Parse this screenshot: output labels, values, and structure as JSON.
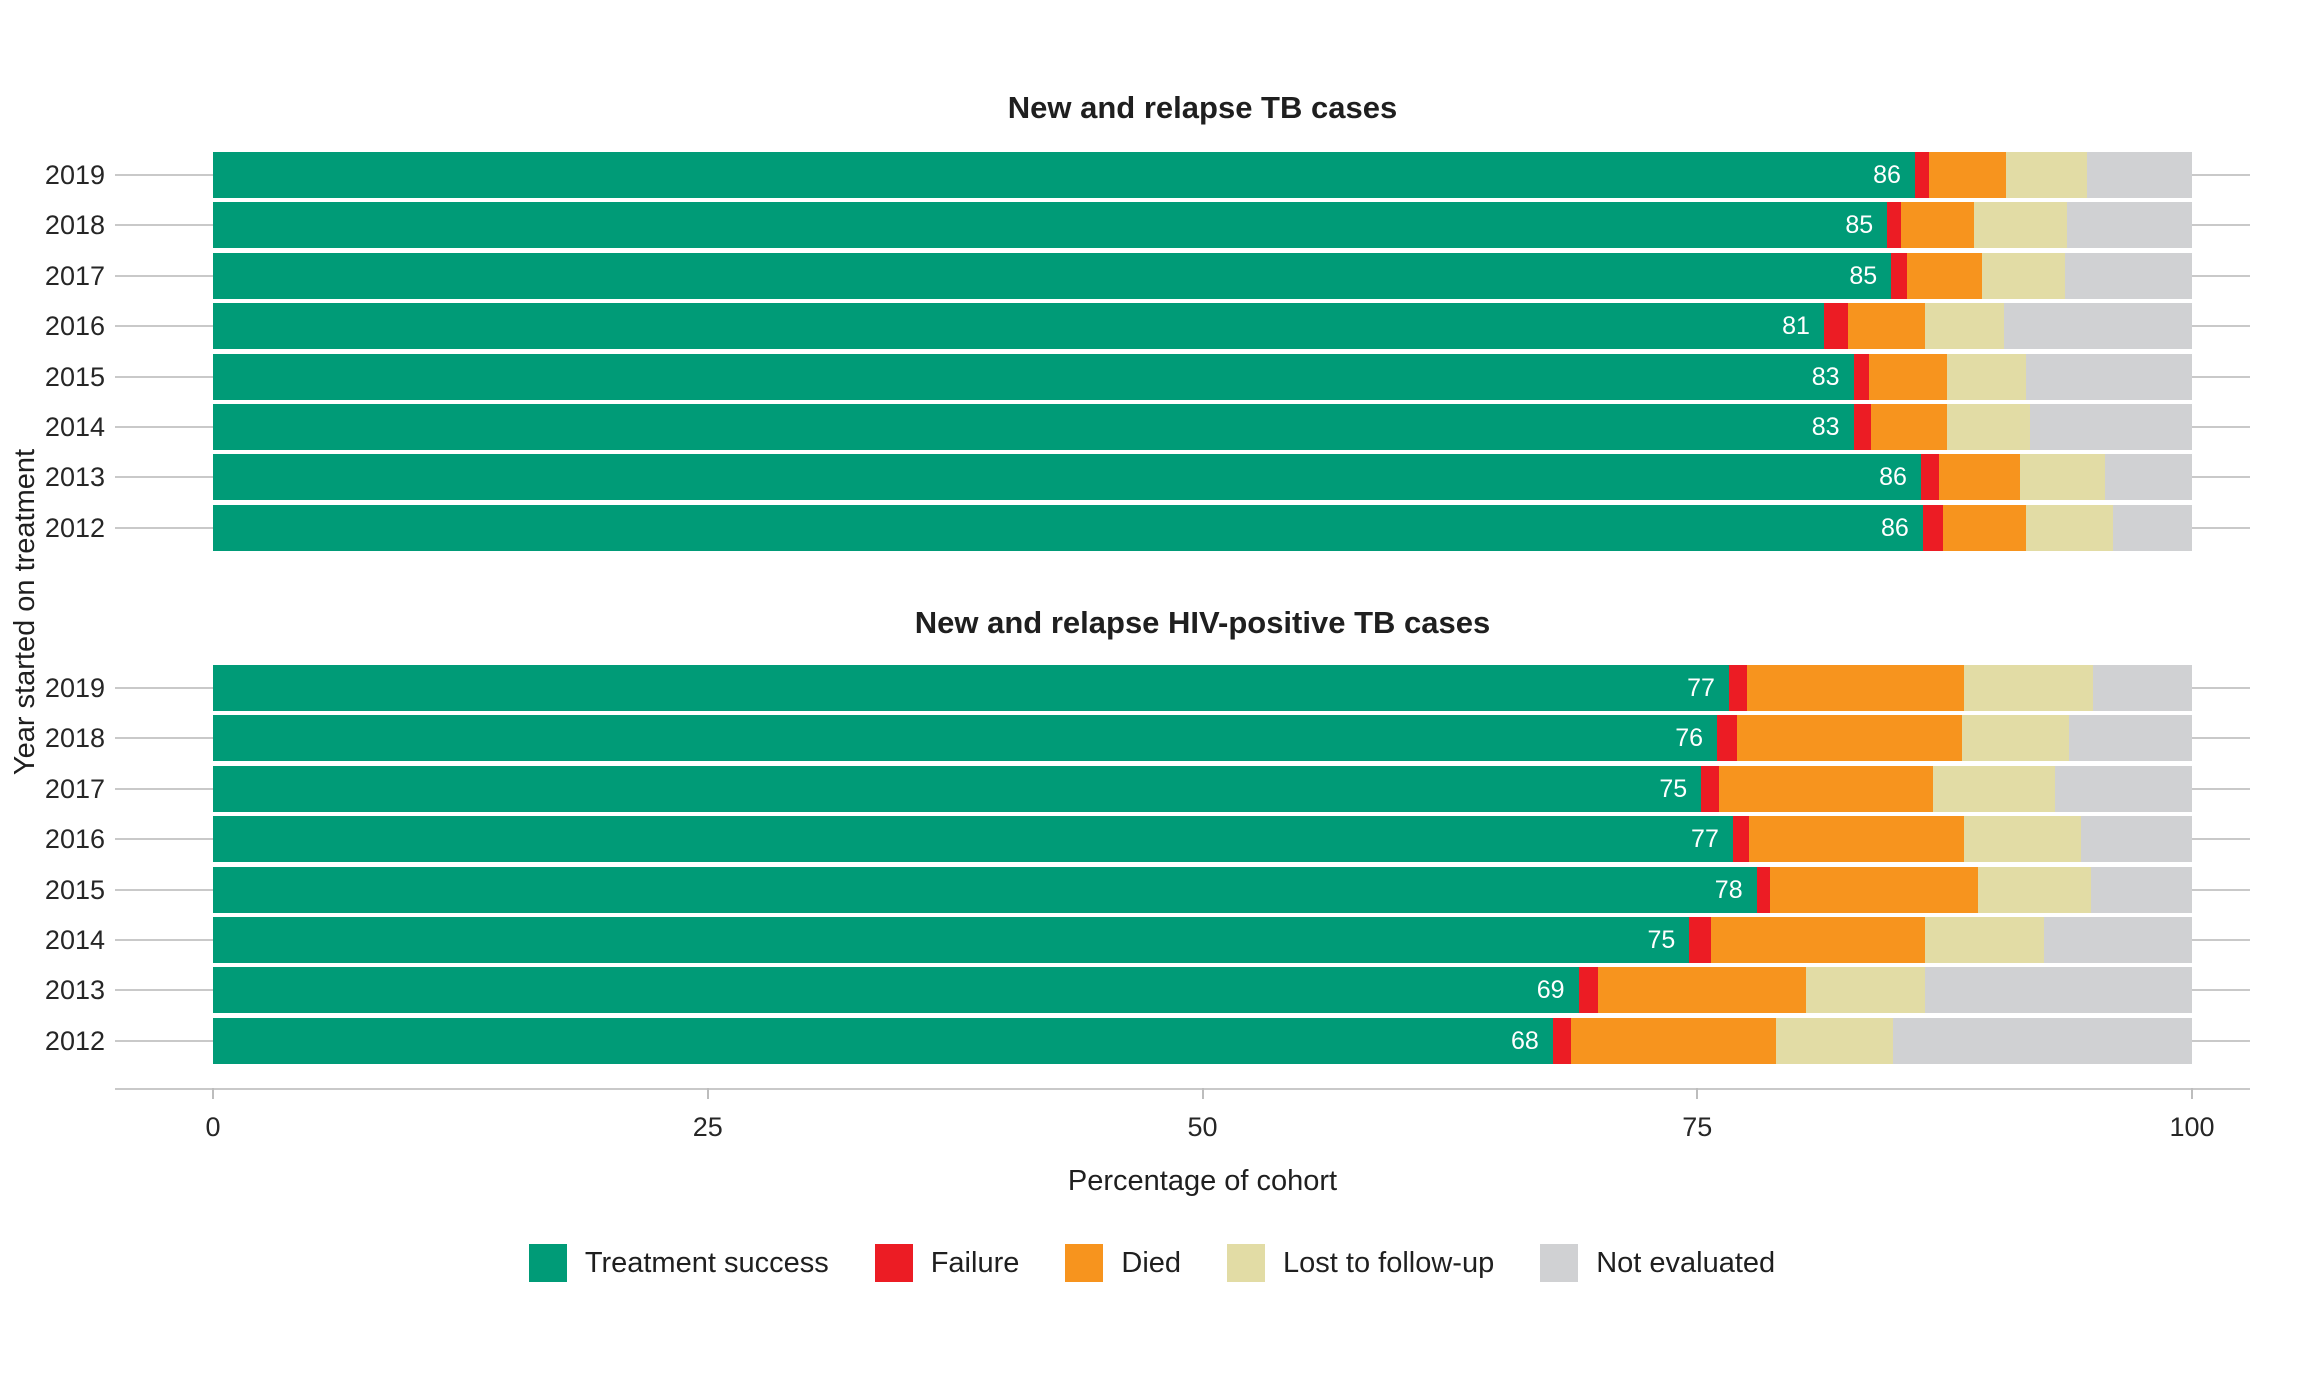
{
  "chart_data": {
    "type": "bar",
    "orientation": "horizontal",
    "stacked": true,
    "title": "",
    "xlabel": "Percentage of cohort",
    "ylabel": "Year started on treatment",
    "xlim": [
      0,
      100
    ],
    "x_ticks": [
      "0",
      "25",
      "50",
      "75",
      "100"
    ],
    "grid": true,
    "legend_position": "bottom",
    "series_names": [
      "Treatment success",
      "Failure",
      "Died",
      "Lost to follow-up",
      "Not evaluated"
    ],
    "panels": [
      {
        "title": "New and relapse TB cases",
        "categories": [
          "2019",
          "2018",
          "2017",
          "2016",
          "2015",
          "2014",
          "2013",
          "2012"
        ],
        "rows": [
          {
            "year": "2019",
            "success_label": "86",
            "values": [
              86.0,
              0.7,
              3.9,
              4.1,
              5.3
            ]
          },
          {
            "year": "2018",
            "success_label": "85",
            "values": [
              84.6,
              0.7,
              3.7,
              4.7,
              6.3
            ]
          },
          {
            "year": "2017",
            "success_label": "85",
            "values": [
              84.8,
              0.8,
              3.8,
              4.2,
              6.4
            ]
          },
          {
            "year": "2016",
            "success_label": "81",
            "values": [
              81.4,
              1.2,
              3.9,
              4.0,
              9.5
            ]
          },
          {
            "year": "2015",
            "success_label": "83",
            "values": [
              82.9,
              0.8,
              3.9,
              4.0,
              8.4
            ]
          },
          {
            "year": "2014",
            "success_label": "83",
            "values": [
              82.9,
              0.9,
              3.8,
              4.2,
              8.2
            ]
          },
          {
            "year": "2013",
            "success_label": "86",
            "values": [
              86.3,
              0.9,
              4.1,
              4.3,
              4.4
            ]
          },
          {
            "year": "2012",
            "success_label": "86",
            "values": [
              86.4,
              1.0,
              4.2,
              4.4,
              4.0
            ]
          }
        ]
      },
      {
        "title": "New and relapse HIV-positive TB cases",
        "categories": [
          "2019",
          "2018",
          "2017",
          "2016",
          "2015",
          "2014",
          "2013",
          "2012"
        ],
        "rows": [
          {
            "year": "2019",
            "success_label": "77",
            "values": [
              76.6,
              0.9,
              11.0,
              6.5,
              5.0
            ]
          },
          {
            "year": "2018",
            "success_label": "76",
            "values": [
              76.0,
              1.0,
              11.4,
              5.4,
              6.2
            ]
          },
          {
            "year": "2017",
            "success_label": "75",
            "values": [
              75.2,
              0.9,
              10.8,
              6.2,
              6.9
            ]
          },
          {
            "year": "2016",
            "success_label": "77",
            "values": [
              76.8,
              0.8,
              10.9,
              5.9,
              5.6
            ]
          },
          {
            "year": "2015",
            "success_label": "78",
            "values": [
              78.0,
              0.7,
              10.5,
              5.7,
              5.1
            ]
          },
          {
            "year": "2014",
            "success_label": "75",
            "values": [
              74.6,
              1.1,
              10.8,
              6.0,
              7.5
            ]
          },
          {
            "year": "2013",
            "success_label": "69",
            "values": [
              69.0,
              1.0,
              10.5,
              6.0,
              13.5
            ]
          },
          {
            "year": "2012",
            "success_label": "68",
            "values": [
              67.7,
              0.9,
              10.4,
              5.9,
              15.1
            ]
          }
        ]
      }
    ]
  },
  "colors": {
    "treatment_success": "#009B77",
    "failure": "#EC1C24",
    "died": "#F7941E",
    "lost_to_follow_up": "#E2DCA5",
    "not_evaluated": "#D0D1D3",
    "gridline": "#C9C9C9",
    "text": "#1F1F1F"
  },
  "legend": {
    "items": [
      {
        "label": "Treatment success",
        "color": "#009B77"
      },
      {
        "label": "Failure",
        "color": "#EC1C24"
      },
      {
        "label": "Died",
        "color": "#F7941E"
      },
      {
        "label": "Lost to follow-up",
        "color": "#E2DCA5"
      },
      {
        "label": "Not evaluated",
        "color": "#D0D1D3"
      }
    ]
  },
  "axis": {
    "xlabel": "Percentage of cohort",
    "ylabel": "Year started on treatment",
    "ticks": [
      "0",
      "25",
      "50",
      "75",
      "100"
    ]
  }
}
